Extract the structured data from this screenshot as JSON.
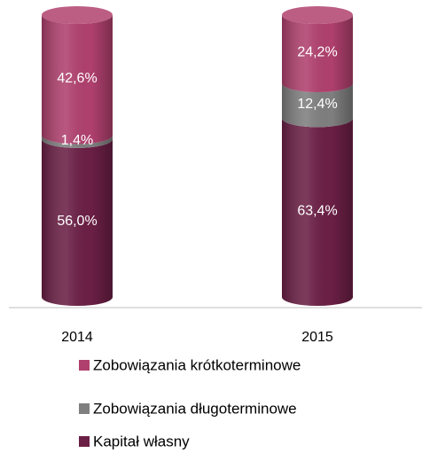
{
  "chart_data": {
    "type": "stacked-cylinder",
    "categories": [
      "2014",
      "2015"
    ],
    "series": [
      {
        "name": "Zobowiązania krótkoterminowe",
        "color": "#b0406e",
        "values": [
          42.6,
          24.2
        ],
        "value_labels": [
          "42,6%",
          "24,2%"
        ]
      },
      {
        "name": "Zobowiązania długoterminowe",
        "color": "#7f7f7f",
        "values": [
          1.4,
          12.4
        ],
        "value_labels": [
          "1,4%",
          "12,4%"
        ]
      },
      {
        "name": "Kapitał własny",
        "color": "#6b1f45",
        "values": [
          56.0,
          63.4
        ],
        "value_labels": [
          "56,0%",
          "63,4%"
        ]
      }
    ]
  }
}
